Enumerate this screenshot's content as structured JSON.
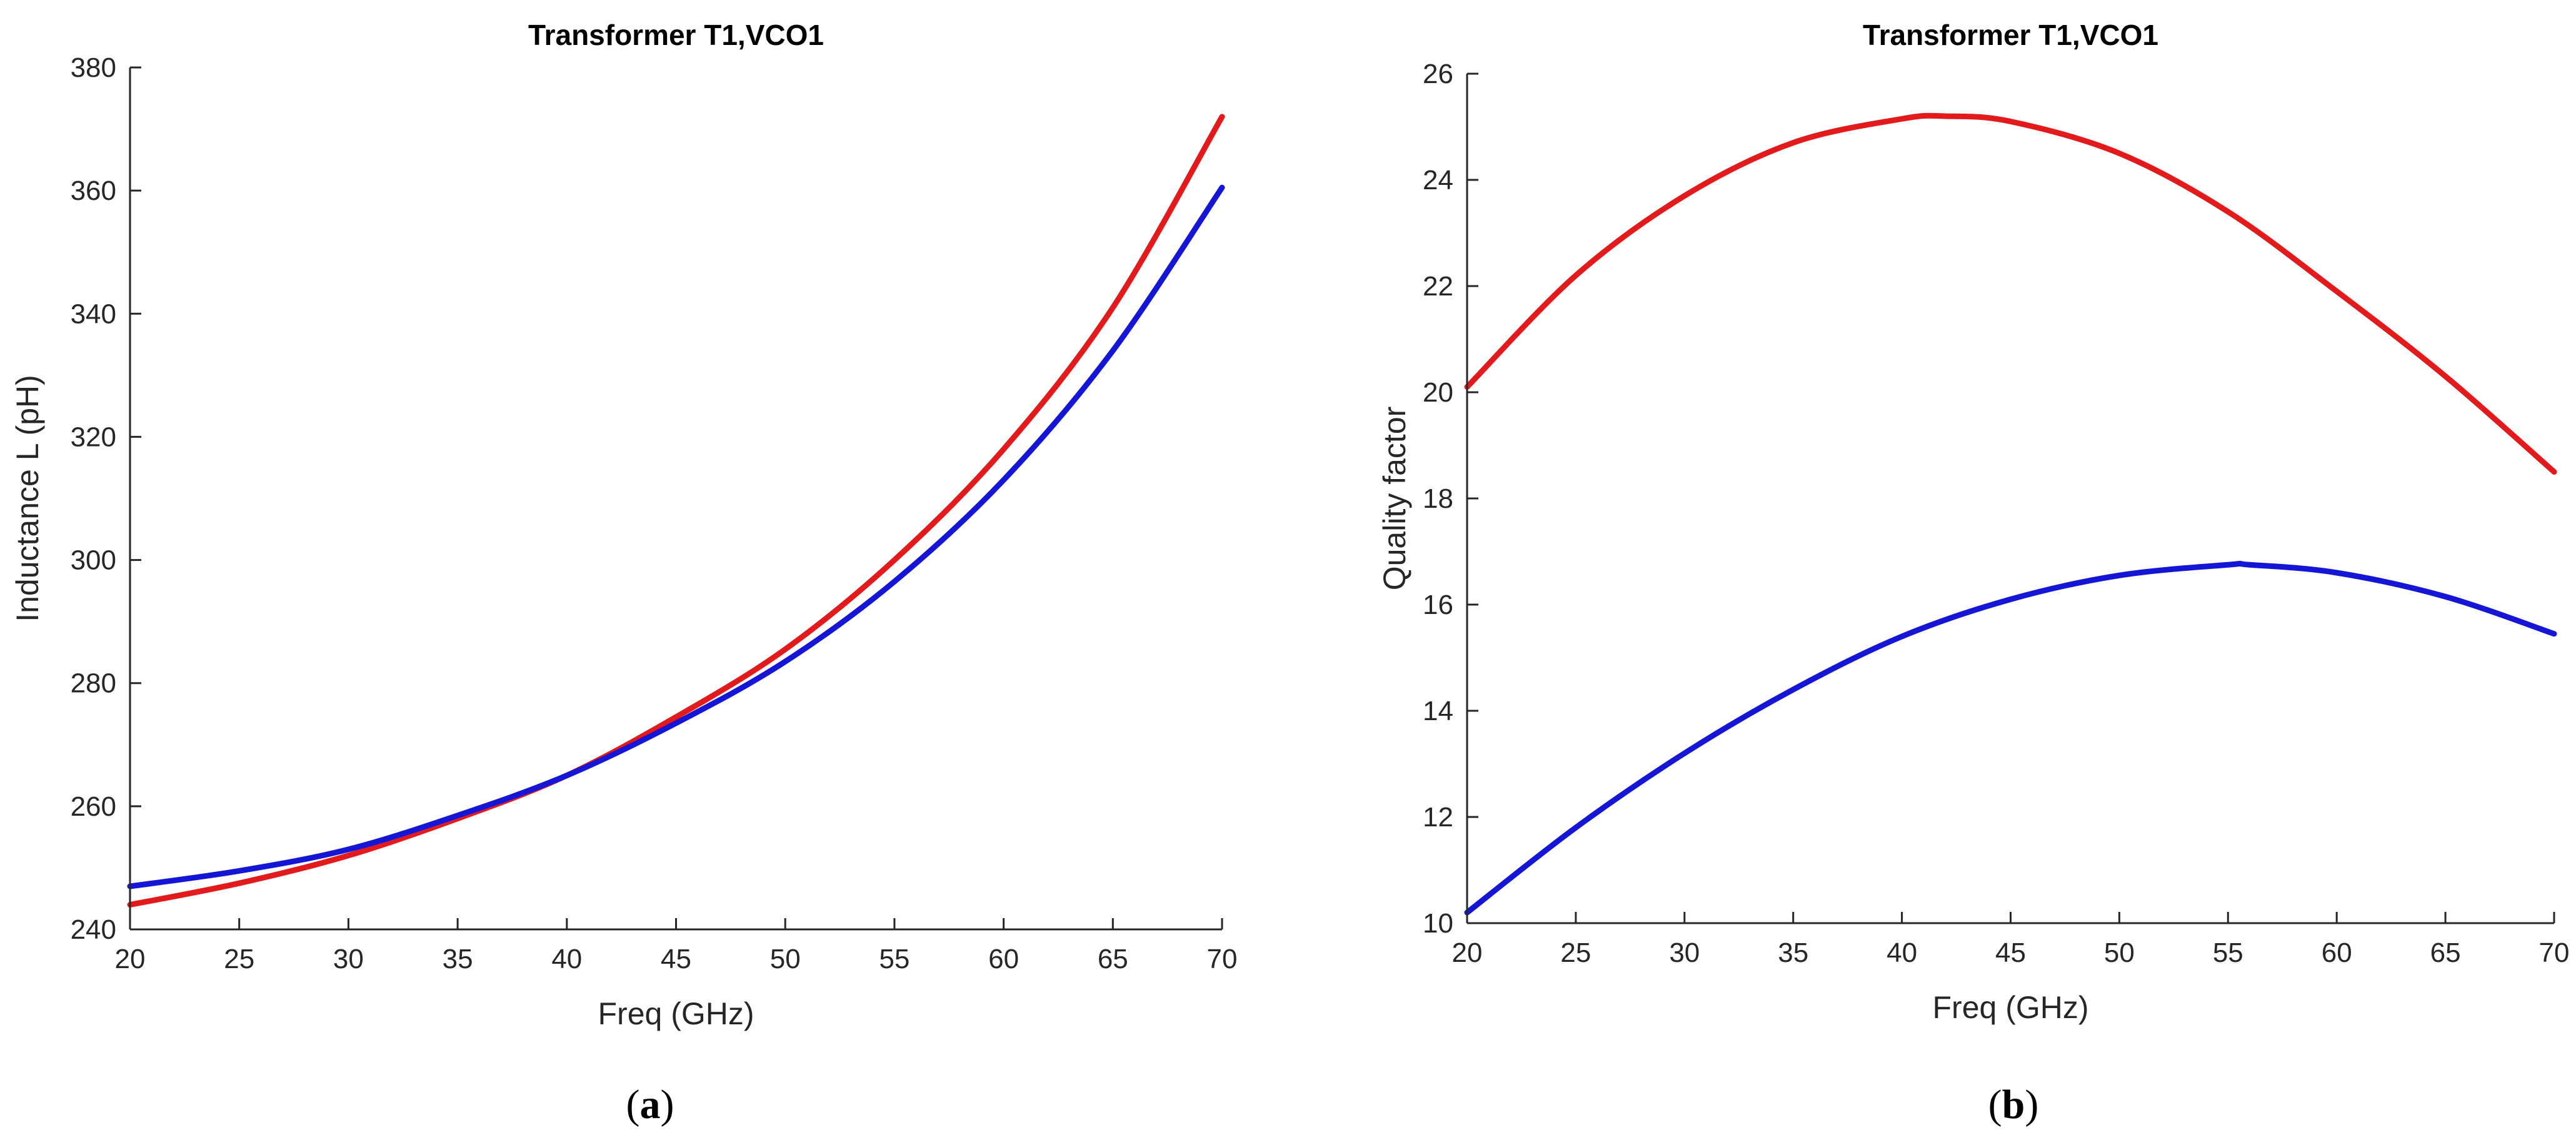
{
  "chart_data": [
    {
      "type": "line",
      "title": "Transformer T1,VCO1",
      "xlabel": "Freq (GHz)",
      "ylabel": "Inductance L (pH)",
      "xlim": [
        20,
        70
      ],
      "ylim": [
        240,
        380
      ],
      "xticks": [
        20,
        25,
        30,
        35,
        40,
        45,
        50,
        55,
        60,
        65,
        70
      ],
      "yticks": [
        240,
        260,
        280,
        300,
        320,
        340,
        360,
        380
      ],
      "panel_label": {
        "open": "(",
        "letter": "a",
        "close": ")"
      },
      "series": [
        {
          "name": "red",
          "color": "#e31a1c",
          "x": [
            20,
            25,
            30,
            35,
            40,
            45,
            50,
            55,
            60,
            65,
            70
          ],
          "values": [
            244,
            247.5,
            252,
            258,
            265,
            274.5,
            285.5,
            300,
            318,
            341,
            372
          ]
        },
        {
          "name": "blue",
          "color": "#1515d6",
          "x": [
            20,
            25,
            30,
            35,
            40,
            45,
            50,
            55,
            60,
            65,
            70
          ],
          "values": [
            247,
            249.5,
            253,
            258.5,
            265,
            273.5,
            283.5,
            296.5,
            313,
            334,
            360.5
          ]
        }
      ]
    },
    {
      "type": "line",
      "title": "Transformer T1,VCO1",
      "xlabel": "Freq (GHz)",
      "ylabel": "Quality factor",
      "xlim": [
        20,
        70
      ],
      "ylim": [
        10,
        26
      ],
      "xticks": [
        20,
        25,
        30,
        35,
        40,
        45,
        50,
        55,
        60,
        65,
        70
      ],
      "yticks": [
        10,
        12,
        14,
        16,
        18,
        20,
        22,
        24,
        26
      ],
      "panel_label": {
        "open": "(",
        "letter": "b",
        "close": ")"
      },
      "series": [
        {
          "name": "red",
          "color": "#e31a1c",
          "x": [
            20,
            25,
            30,
            35,
            40,
            42,
            45,
            50,
            55,
            60,
            65,
            70
          ],
          "values": [
            20.1,
            22.2,
            23.7,
            24.7,
            25.15,
            25.2,
            25.1,
            24.5,
            23.4,
            21.9,
            20.3,
            18.5
          ]
        },
        {
          "name": "blue",
          "color": "#1515d6",
          "x": [
            20,
            25,
            30,
            35,
            40,
            45,
            50,
            55,
            56,
            60,
            65,
            70
          ],
          "values": [
            10.2,
            11.8,
            13.2,
            14.4,
            15.4,
            16.1,
            16.55,
            16.75,
            16.75,
            16.6,
            16.15,
            15.45
          ]
        }
      ]
    }
  ]
}
